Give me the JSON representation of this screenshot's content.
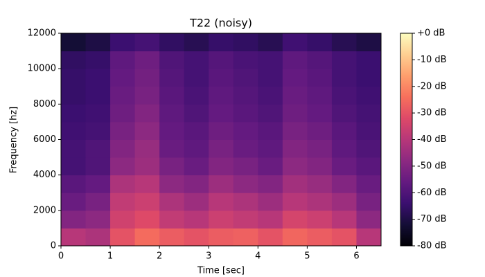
{
  "chart_data": {
    "type": "spectrogram",
    "title": "T22 (noisy)",
    "x_label": "Time [sec]",
    "y_label": "Frequency [hz]",
    "colormap": "magma",
    "xbins": [
      0,
      0.5,
      1,
      1.5,
      2,
      2.5,
      3,
      3.5,
      4,
      4.5,
      5,
      5.5,
      6,
      6.5
    ],
    "ybins": [
      0,
      1000,
      2000,
      3000,
      4000,
      5000,
      6000,
      7000,
      8000,
      9000,
      10000,
      11000,
      12000
    ],
    "z": [
      [
        -40,
        -42,
        -30,
        -25,
        -28,
        -30,
        -28,
        -27,
        -30,
        -26,
        -28,
        -30,
        -40
      ],
      [
        -50,
        -48,
        -35,
        -32,
        -38,
        -40,
        -36,
        -38,
        -40,
        -34,
        -36,
        -40,
        -48
      ],
      [
        -55,
        -52,
        -38,
        -36,
        -42,
        -45,
        -40,
        -42,
        -45,
        -40,
        -42,
        -45,
        -52
      ],
      [
        -58,
        -56,
        -42,
        -40,
        -48,
        -50,
        -45,
        -48,
        -50,
        -44,
        -46,
        -50,
        -55
      ],
      [
        -62,
        -60,
        -48,
        -45,
        -52,
        -55,
        -50,
        -52,
        -55,
        -48,
        -50,
        -55,
        -58
      ],
      [
        -62,
        -60,
        -50,
        -46,
        -55,
        -57,
        -52,
        -55,
        -57,
        -50,
        -52,
        -57,
        -60
      ],
      [
        -63,
        -62,
        -52,
        -48,
        -56,
        -58,
        -54,
        -56,
        -58,
        -52,
        -54,
        -58,
        -61
      ],
      [
        -64,
        -63,
        -54,
        -50,
        -57,
        -60,
        -56,
        -58,
        -60,
        -54,
        -56,
        -60,
        -62
      ],
      [
        -65,
        -64,
        -55,
        -52,
        -58,
        -61,
        -57,
        -59,
        -61,
        -55,
        -57,
        -61,
        -63
      ],
      [
        -65,
        -64,
        -56,
        -53,
        -59,
        -62,
        -58,
        -60,
        -62,
        -56,
        -58,
        -62,
        -64
      ],
      [
        -66,
        -65,
        -57,
        -54,
        -60,
        -62,
        -59,
        -61,
        -62,
        -57,
        -59,
        -62,
        -64
      ],
      [
        -72,
        -70,
        -64,
        -62,
        -66,
        -68,
        -65,
        -66,
        -68,
        -63,
        -65,
        -68,
        -70
      ]
    ],
    "xlim": [
      0,
      6.5
    ],
    "ylim": [
      0,
      12000
    ],
    "xticks": [
      0,
      1,
      2,
      3,
      4,
      5,
      6
    ],
    "yticks": [
      0,
      2000,
      4000,
      6000,
      8000,
      10000,
      12000
    ],
    "zlim": [
      -80,
      0
    ],
    "zticks": [
      {
        "value": 0,
        "label": "+0 dB"
      },
      {
        "value": -10,
        "label": "-10 dB"
      },
      {
        "value": -20,
        "label": "-20 dB"
      },
      {
        "value": -30,
        "label": "-30 dB"
      },
      {
        "value": -40,
        "label": "-40 dB"
      },
      {
        "value": -50,
        "label": "-50 dB"
      },
      {
        "value": -60,
        "label": "-60 dB"
      },
      {
        "value": -70,
        "label": "-70 dB"
      },
      {
        "value": -80,
        "label": "-80 dB"
      }
    ]
  }
}
